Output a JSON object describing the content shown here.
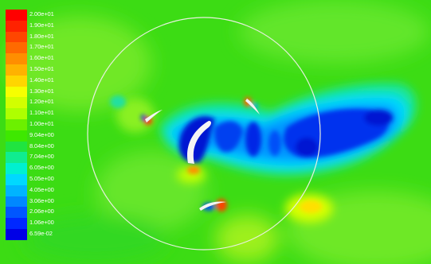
{
  "legend": {
    "labels": [
      "2.00e+01",
      "1.90e+01",
      "1.80e+01",
      "1.70e+01",
      "1.60e+01",
      "1.50e+01",
      "1.40e+01",
      "1.30e+01",
      "1.20e+01",
      "1.10e+01",
      "1.00e+01",
      "9.04e+00",
      "8.04e+00",
      "7.04e+00",
      "6.05e+00",
      "5.05e+00",
      "4.05e+00",
      "3.06e+00",
      "2.06e+00",
      "1.06e+00",
      "6.59e-02"
    ],
    "colors": [
      "#ff0000",
      "#ff2200",
      "#ff4600",
      "#ff6a00",
      "#ff8e00",
      "#ffb200",
      "#ffd600",
      "#f6ff00",
      "#d2ff00",
      "#aeff00",
      "#6cf000",
      "#3ee800",
      "#20e440",
      "#10ec90",
      "#00f0d0",
      "#00d8ff",
      "#00b4ff",
      "#0088ff",
      "#0056ff",
      "#0028ff",
      "#0000e6"
    ]
  },
  "colors": {
    "background": "#3cdc14",
    "low": "#0014d2",
    "high": "#ff2000",
    "circle": "#e8f0e0"
  }
}
